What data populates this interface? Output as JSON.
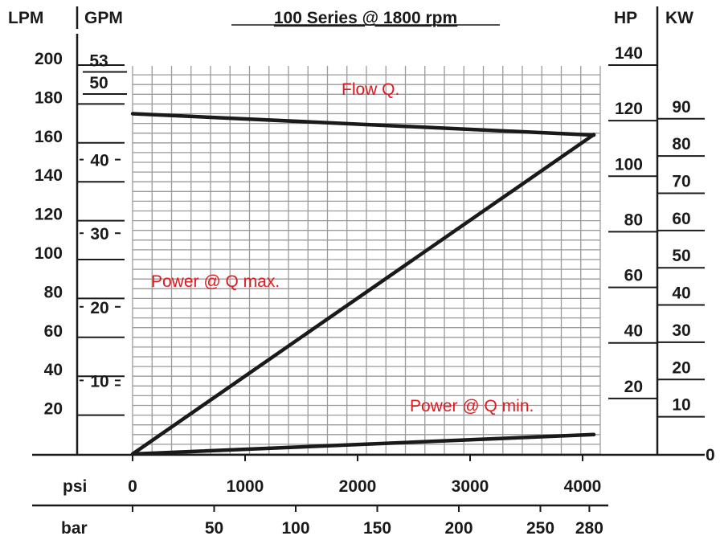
{
  "chart_data": {
    "type": "line",
    "title": "100 Series @ 1800 rpm",
    "x_unit_primary": "psi",
    "x_unit_secondary": "bar",
    "x_ticks_psi": [
      "0",
      "1000",
      "2000",
      "3000",
      "4000"
    ],
    "x_ticks_bar": [
      "50",
      "100",
      "150",
      "200",
      "250",
      "280"
    ],
    "xlim_psi": [
      0,
      4100
    ],
    "left_axes": [
      {
        "unit": "LPM",
        "ticks": [
          "200",
          "180",
          "160",
          "140",
          "120",
          "100",
          "80",
          "60",
          "40",
          "20"
        ]
      },
      {
        "unit": "GPM",
        "ticks": [
          "53",
          "50",
          "40",
          "30",
          "20",
          "10"
        ]
      }
    ],
    "right_axes": [
      {
        "unit": "HP",
        "ticks": [
          "140",
          "120",
          "100",
          "80",
          "60",
          "40",
          "20"
        ]
      },
      {
        "unit": "KW",
        "ticks": [
          "90",
          "80",
          "70",
          "60",
          "50",
          "40",
          "30",
          "20",
          "10",
          "0"
        ]
      }
    ],
    "ylim_lpm": [
      0,
      200
    ],
    "series": [
      {
        "name": "Flow Q.",
        "axis": "LPM",
        "x": [
          0,
          4100
        ],
        "y": [
          175,
          164
        ]
      },
      {
        "name": "Power @ Q max.",
        "axis": "HP",
        "x": [
          0,
          4100
        ],
        "y": [
          0,
          115
        ]
      },
      {
        "name": "Power @ Q min.",
        "axis": "HP",
        "x": [
          0,
          4100
        ],
        "y": [
          0,
          7
        ]
      }
    ],
    "grid": true,
    "line_color": "#1a1a1a",
    "label_color": "#e0191f",
    "grid_color": "#9a9a9a"
  }
}
